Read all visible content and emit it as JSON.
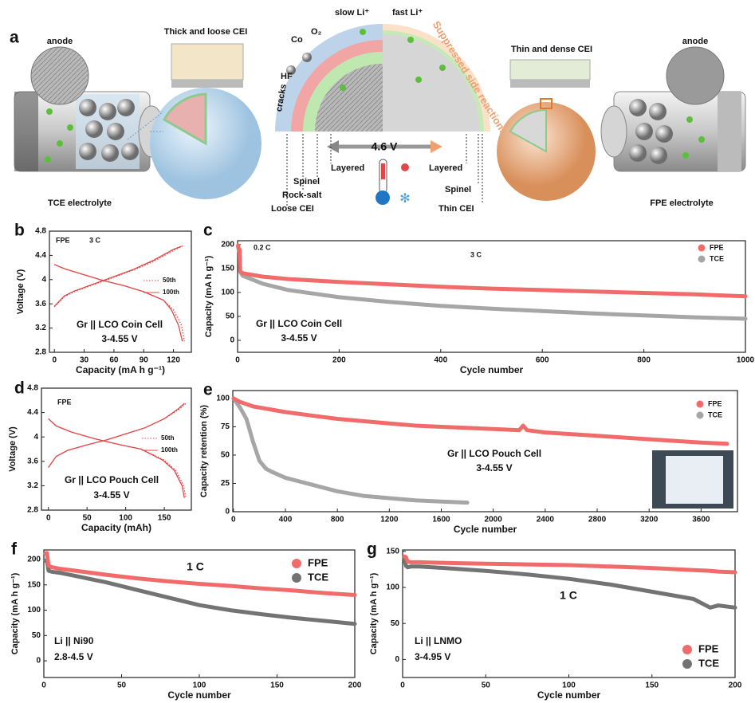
{
  "diagram": {
    "panel": "a",
    "left": {
      "anode": "anode",
      "cei": "Thick and loose CEI",
      "electrolyte": "TCE electrolyte"
    },
    "center": {
      "cracks": "cracks",
      "hf": "HF",
      "co": "Co",
      "o2": "O₂",
      "slow": "slow Li⁺",
      "fast": "fast Li⁺",
      "suppressed": "Suppressed side reactions",
      "voltage": "4.6 V",
      "left_labels": [
        "Layered",
        "Spinel",
        "Rock-salt",
        "Loose CEI"
      ],
      "right_labels": [
        "Layered",
        "Spinel",
        "Thin CEI"
      ]
    },
    "right": {
      "cei": "Thin and dense CEI",
      "anode": "anode",
      "electrolyte": "FPE electrolyte"
    }
  },
  "chart_data": [
    {
      "type": "curve",
      "panel": "b",
      "xlabel": "Capacity (mA h g⁻¹)",
      "ylabel": "Voltage (V)",
      "xlim": [
        -5,
        138
      ],
      "ylim": [
        2.8,
        4.8
      ],
      "xticks": [
        0,
        30,
        60,
        90,
        120
      ],
      "yticks": [
        2.8,
        3.2,
        3.6,
        4,
        4.4,
        4.8
      ],
      "annotations": [
        "FPE",
        "3 C",
        "Gr || LCO Coin Cell",
        "3-4.55 V"
      ],
      "legend": "right",
      "series": [
        {
          "name": "50th",
          "color": "#e04848",
          "line_style": "dotted",
          "charge": {
            "x": [
              0,
              10,
              20,
              40,
              60,
              80,
              100,
              120,
              130
            ],
            "values": [
              3.55,
              3.72,
              3.8,
              3.92,
              4.04,
              4.16,
              4.3,
              4.48,
              4.56
            ]
          },
          "discharge": {
            "x": [
              0,
              10,
              30,
              50,
              70,
              90,
              110,
              120,
              128,
              131
            ],
            "values": [
              4.25,
              4.18,
              4.08,
              3.98,
              3.9,
              3.8,
              3.66,
              3.5,
              3.25,
              2.98
            ]
          }
        },
        {
          "name": "100th",
          "color": "#e04848",
          "line_style": "solid",
          "charge": {
            "x": [
              0,
              10,
              20,
              40,
              60,
              80,
              100,
              120,
              128
            ],
            "values": [
              3.56,
              3.73,
              3.81,
              3.93,
              4.05,
              4.17,
              4.32,
              4.5,
              4.55
            ]
          },
          "discharge": {
            "x": [
              0,
              10,
              30,
              50,
              70,
              90,
              110,
              118,
              125,
              129
            ],
            "values": [
              4.25,
              4.18,
              4.08,
              3.98,
              3.9,
              3.8,
              3.66,
              3.5,
              3.25,
              2.98
            ]
          }
        }
      ]
    },
    {
      "type": "line",
      "panel": "c",
      "xlabel": "Cycle number",
      "ylabel": "Capacity (mA h g⁻¹)",
      "xlim": [
        0,
        1000
      ],
      "ylim": [
        -25,
        208
      ],
      "xticks": [
        0,
        200,
        400,
        600,
        800,
        1000
      ],
      "yticks": [
        0,
        50,
        100,
        150,
        200
      ],
      "annotations": [
        "0.2 C",
        "3 C",
        "Gr || LCO Coin Cell",
        "3-4.55 V"
      ],
      "legend": "upper right",
      "x": [
        1,
        2,
        3,
        4,
        5,
        10,
        50,
        100,
        200,
        300,
        400,
        500,
        600,
        700,
        800,
        900,
        1000
      ],
      "series": [
        {
          "name": "FPE",
          "color": "#f26b6b",
          "values": [
            198,
            192,
            188,
            190,
            145,
            140,
            133,
            128,
            122,
            117,
            112,
            108,
            105,
            102,
            99,
            96,
            92
          ]
        },
        {
          "name": "TCE",
          "color": "#a6a6a6",
          "values": [
            196,
            190,
            186,
            188,
            143,
            135,
            118,
            105,
            90,
            80,
            72,
            66,
            61,
            56,
            52,
            48,
            45
          ]
        }
      ]
    },
    {
      "type": "curve",
      "panel": "d",
      "xlabel": "Capacity (mAh)",
      "ylabel": "Voltage (V)",
      "xlim": [
        -9,
        185
      ],
      "ylim": [
        2.8,
        4.8
      ],
      "xticks": [
        0,
        50,
        100,
        150
      ],
      "yticks": [
        2.8,
        3.2,
        3.6,
        4,
        4.4,
        4.8
      ],
      "annotations": [
        "FPE",
        "Gr || LCO Pouch Cell",
        "3-4.55 V"
      ],
      "legend": "right",
      "series": [
        {
          "name": "50th",
          "color": "#e04848",
          "line_style": "dotted",
          "charge": {
            "x": [
              0,
              10,
              25,
              50,
              75,
              100,
              125,
              150,
              170,
              178
            ],
            "values": [
              3.5,
              3.68,
              3.78,
              3.87,
              3.95,
              4.05,
              4.15,
              4.3,
              4.46,
              4.55
            ]
          },
          "discharge": {
            "x": [
              0,
              10,
              30,
              60,
              90,
              120,
              150,
              165,
              175,
              178
            ],
            "values": [
              4.3,
              4.18,
              4.08,
              3.97,
              3.88,
              3.8,
              3.62,
              3.45,
              3.2,
              3.0
            ]
          }
        },
        {
          "name": "100th",
          "color": "#e04848",
          "line_style": "solid",
          "charge": {
            "x": [
              0,
              10,
              25,
              50,
              75,
              100,
              125,
              150,
              168,
              176
            ],
            "values": [
              3.5,
              3.68,
              3.78,
              3.87,
              3.95,
              4.05,
              4.15,
              4.3,
              4.46,
              4.55
            ]
          },
          "discharge": {
            "x": [
              0,
              10,
              30,
              60,
              90,
              120,
              148,
              163,
              173,
              176
            ],
            "values": [
              4.3,
              4.18,
              4.08,
              3.97,
              3.88,
              3.8,
              3.62,
              3.45,
              3.2,
              3.0
            ]
          }
        }
      ]
    },
    {
      "type": "line",
      "panel": "e",
      "xlabel": "Cycle number",
      "ylabel": "Capacity retention (%)",
      "xlim": [
        -5,
        3880
      ],
      "ylim": [
        0,
        107
      ],
      "xticks": [
        0,
        400,
        800,
        1200,
        1600,
        2000,
        2400,
        2800,
        3200,
        3600
      ],
      "yticks": [
        0,
        25,
        50,
        75,
        100
      ],
      "annotations": [
        "Gr || LCO Pouch Cell",
        "3-4.55 V"
      ],
      "legend": "upper right",
      "x": [
        1,
        50,
        100,
        150,
        200,
        250,
        300,
        400,
        600,
        800,
        1000,
        1200,
        1400,
        1600,
        1800,
        2000,
        2200,
        2230,
        2260,
        2400,
        2800,
        3200,
        3600,
        3800
      ],
      "series": [
        {
          "name": "FPE",
          "color": "#f26b6b",
          "values": [
            100,
            97,
            95,
            93,
            92,
            91,
            90,
            88,
            85,
            82,
            80,
            78,
            76,
            75,
            74,
            73,
            72,
            76,
            72,
            70,
            67,
            64,
            61,
            60
          ]
        },
        {
          "name": "TCE",
          "color": "#a6a6a6",
          "values": [
            100,
            92,
            82,
            62,
            45,
            38,
            35,
            30,
            24,
            18,
            14,
            12,
            10,
            9,
            8,
            null,
            null,
            null,
            null,
            null,
            null,
            null,
            null,
            null
          ]
        }
      ]
    },
    {
      "type": "line",
      "panel": "f",
      "xlabel": "Cycle number",
      "ylabel": "Capacity (mA h g⁻¹)",
      "xlim": [
        0,
        200
      ],
      "ylim": [
        -33,
        219
      ],
      "xticks": [
        0,
        50,
        100,
        150,
        200
      ],
      "yticks": [
        0,
        50,
        100,
        150,
        200
      ],
      "annotations": [
        "1 C",
        "Li || Ni90",
        "2.8-4.5 V"
      ],
      "legend": "upper right",
      "x": [
        1,
        2,
        3,
        5,
        10,
        20,
        40,
        60,
        80,
        100,
        120,
        140,
        160,
        180,
        200
      ],
      "series": [
        {
          "name": "FPE",
          "color": "#f26b6b",
          "values": [
            212,
            213,
            188,
            185,
            182,
            178,
            170,
            163,
            157,
            152,
            148,
            143,
            139,
            134,
            130
          ]
        },
        {
          "name": "TCE",
          "color": "#737373",
          "values": [
            198,
            199,
            178,
            176,
            174,
            168,
            155,
            140,
            125,
            110,
            100,
            92,
            85,
            79,
            73
          ]
        }
      ]
    },
    {
      "type": "line",
      "panel": "g",
      "xlabel": "Cycle number",
      "ylabel": "Capacity (mA h g⁻¹)",
      "xlim": [
        0,
        200
      ],
      "ylim": [
        -25,
        152
      ],
      "xticks": [
        0,
        50,
        100,
        150,
        200
      ],
      "yticks": [
        0,
        50,
        100,
        150
      ],
      "annotations": [
        "1 C",
        "Li || LNMO",
        "3-4.95 V"
      ],
      "legend": "lower right",
      "x": [
        1,
        2,
        3,
        5,
        10,
        25,
        50,
        75,
        100,
        125,
        150,
        175,
        185,
        190,
        200
      ],
      "series": [
        {
          "name": "FPE",
          "color": "#f26b6b",
          "values": [
            143,
            142,
            136,
            135,
            135,
            134,
            133,
            132,
            131,
            129,
            127,
            124,
            123,
            122,
            121
          ]
        },
        {
          "name": "TCE",
          "color": "#737373",
          "values": [
            140,
            130,
            128,
            129,
            129,
            127,
            123,
            118,
            112,
            104,
            94,
            84,
            72,
            75,
            72
          ]
        }
      ]
    }
  ]
}
